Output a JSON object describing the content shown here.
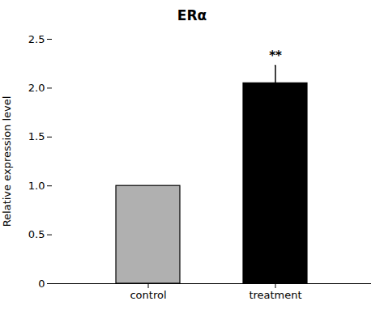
{
  "chart_data": {
    "type": "bar",
    "title": "ERα",
    "categories": [
      "control",
      "treatment"
    ],
    "values": [
      1.0,
      2.05
    ],
    "errors": [
      null,
      0.18
    ],
    "colors": [
      "#b0b0b0",
      "#000000"
    ],
    "ylabel": "Relative expression level",
    "ylim": [
      0,
      2.5
    ],
    "yticks": [
      0,
      0.5,
      {
        "value": 1.0,
        "label": "1.0"
      },
      1.5,
      {
        "value": 2.0,
        "label": "2.0"
      },
      2.5
    ],
    "annotations": [
      {
        "text": "**",
        "category": "treatment"
      }
    ],
    "grid": false
  }
}
